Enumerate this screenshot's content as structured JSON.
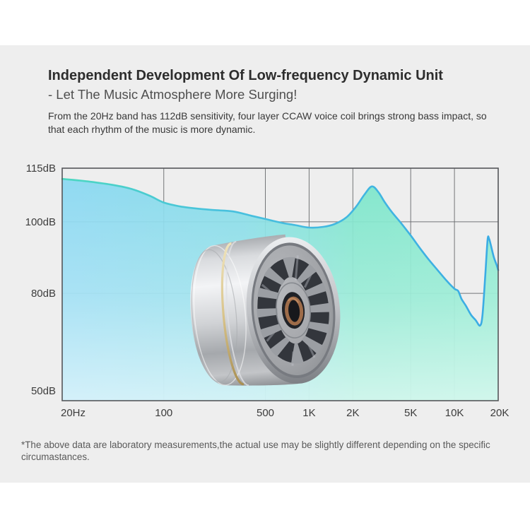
{
  "page": {
    "background": "#ffffff",
    "card_background": "#eeeeee"
  },
  "header": {
    "title": "Independent Development Of Low-frequency Dynamic Unit",
    "subtitle": "- Let The Music Atmosphere More Surging!",
    "description_line1": "From the 20Hz band has 112dB sensitivity, four layer CCAW voice coil brings strong bass impact, so",
    "description_line2": "that each rhythm of the music is more dynamic."
  },
  "footer": {
    "note": "*The above data are laboratory measurements,the actual use may be slightly different depending on the specific circumastances."
  },
  "product_image": {
    "name": "dynamic-driver-unit"
  },
  "chart_data": {
    "type": "area",
    "title": "Frequency response curve",
    "x_axis": {
      "scale": "log",
      "unit": "Hz",
      "range": [
        20,
        20000
      ],
      "ticks": [
        {
          "label": "20Hz",
          "value": 20
        },
        {
          "label": "100",
          "value": 100
        },
        {
          "label": "500",
          "value": 500
        },
        {
          "label": "1K",
          "value": 1000
        },
        {
          "label": "2K",
          "value": 2000
        },
        {
          "label": "5K",
          "value": 5000
        },
        {
          "label": "10K",
          "value": 10000
        },
        {
          "label": "20K",
          "value": 20000
        }
      ]
    },
    "y_axis": {
      "unit": "dB",
      "range": [
        50,
        115
      ],
      "ticks": [
        {
          "label": "115dB",
          "value": 115
        },
        {
          "label": "100dB",
          "value": 100
        },
        {
          "label": "80dB",
          "value": 80
        },
        {
          "label": "50dB",
          "value": 50
        }
      ],
      "gridlines_db": [
        100,
        80
      ]
    },
    "grid": true,
    "legend": false,
    "series": [
      {
        "name": "sensitivity-vs-frequency",
        "points": [
          [
            20,
            112
          ],
          [
            30,
            111.3
          ],
          [
            45,
            110.3
          ],
          [
            60,
            109.2
          ],
          [
            80,
            107.3
          ],
          [
            100,
            105.4
          ],
          [
            130,
            104.3
          ],
          [
            170,
            103.7
          ],
          [
            220,
            103.3
          ],
          [
            300,
            102.9
          ],
          [
            400,
            101.7
          ],
          [
            500,
            100.8
          ],
          [
            650,
            99.7
          ],
          [
            800,
            99.1
          ],
          [
            1000,
            98.4
          ],
          [
            1250,
            98.6
          ],
          [
            1500,
            99.4
          ],
          [
            1800,
            101.2
          ],
          [
            2100,
            104.2
          ],
          [
            2400,
            107.6
          ],
          [
            2700,
            109.9
          ],
          [
            3000,
            108.3
          ],
          [
            3300,
            105.6
          ],
          [
            3700,
            102.8
          ],
          [
            4300,
            99.6
          ],
          [
            5000,
            96.2
          ],
          [
            5800,
            92.6
          ],
          [
            6700,
            89.3
          ],
          [
            7700,
            86.4
          ],
          [
            8800,
            83.6
          ],
          [
            10000,
            81.3
          ],
          [
            10600,
            80.7
          ],
          [
            11200,
            78.4
          ],
          [
            12000,
            76.5
          ],
          [
            13000,
            74
          ],
          [
            14000,
            72.5
          ],
          [
            15000,
            71
          ],
          [
            15600,
            74
          ],
          [
            16300,
            85
          ],
          [
            16900,
            95
          ],
          [
            17300,
            95.3
          ],
          [
            17800,
            93.5
          ],
          [
            18700,
            90
          ],
          [
            19500,
            88
          ],
          [
            20000,
            86.5
          ]
        ]
      }
    ],
    "colors": {
      "stroke_left": "#4cd8c0",
      "stroke_right": "#3aabe4",
      "fill_left": "#86d7f2",
      "fill_right": "#7de8c9",
      "gridline": "#66686b",
      "border": "#55575a"
    },
    "annotations": [
      "112dB sensitivity at 20Hz band"
    ]
  }
}
